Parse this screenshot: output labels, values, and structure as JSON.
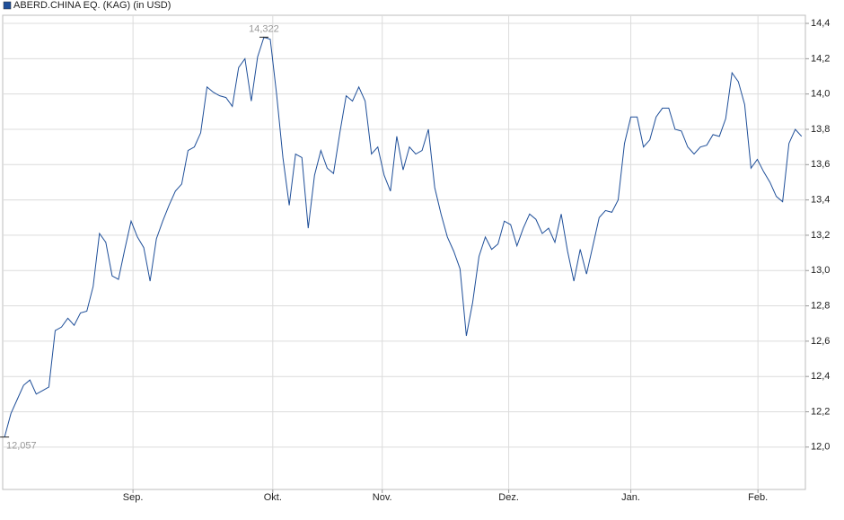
{
  "chart_data": {
    "type": "line",
    "series": [
      {
        "name": "ABERD.CHINA EQ. (KAG) (in USD)",
        "color": "#1f4f99",
        "values": [
          12.057,
          12.19,
          12.27,
          12.35,
          12.38,
          12.3,
          12.32,
          12.34,
          12.66,
          12.68,
          12.73,
          12.69,
          12.76,
          12.77,
          12.91,
          13.21,
          13.16,
          12.97,
          12.95,
          13.12,
          13.28,
          13.19,
          13.13,
          12.94,
          13.18,
          13.28,
          13.37,
          13.45,
          13.49,
          13.68,
          13.7,
          13.78,
          14.04,
          14.01,
          13.99,
          13.98,
          13.93,
          14.15,
          14.2,
          13.96,
          14.21,
          14.322,
          14.31,
          14.0,
          13.64,
          13.37,
          13.66,
          13.64,
          13.24,
          13.54,
          13.68,
          13.58,
          13.55,
          13.78,
          13.99,
          13.96,
          14.04,
          13.96,
          13.66,
          13.7,
          13.54,
          13.45,
          13.76,
          13.57,
          13.7,
          13.66,
          13.68,
          13.8,
          13.47,
          13.32,
          13.19,
          13.11,
          13.01,
          12.63,
          12.82,
          13.08,
          13.19,
          13.12,
          13.15,
          13.28,
          13.26,
          13.14,
          13.24,
          13.32,
          13.29,
          13.21,
          13.24,
          13.16,
          13.32,
          13.11,
          12.94,
          13.12,
          12.98,
          13.14,
          13.3,
          13.34,
          13.33,
          13.4,
          13.72,
          13.87,
          13.87,
          13.7,
          13.74,
          13.87,
          13.92,
          13.92,
          13.8,
          13.79,
          13.7,
          13.66,
          13.7,
          13.71,
          13.77,
          13.76,
          13.86,
          14.12,
          14.07,
          13.94,
          13.58,
          13.63,
          13.56,
          13.5,
          13.42,
          13.39,
          13.72,
          13.8,
          13.76
        ]
      }
    ],
    "x": [
      0,
      1,
      2,
      3,
      4,
      5,
      6,
      7,
      8,
      9,
      10,
      11,
      12,
      13,
      14,
      15,
      16,
      17,
      18,
      19,
      20,
      21,
      22,
      23,
      24,
      25,
      26,
      27,
      28,
      29,
      30,
      31,
      32,
      33,
      34,
      35,
      36,
      37,
      38,
      39,
      40,
      41,
      42,
      43,
      44,
      45,
      46,
      47,
      48,
      49,
      50,
      51,
      52,
      53,
      54,
      55,
      56,
      57,
      58,
      59,
      60,
      61,
      62,
      63,
      64,
      65,
      66,
      67,
      68,
      69,
      70,
      71,
      72,
      73,
      74,
      75,
      76,
      77,
      78,
      79,
      80,
      81,
      82,
      83,
      84,
      85,
      86,
      87,
      88,
      89,
      90,
      91,
      92,
      93,
      94,
      95,
      96,
      97,
      98,
      99,
      100,
      101,
      102,
      103,
      104,
      105,
      106,
      107,
      108,
      109,
      110,
      111,
      112,
      113,
      114,
      115,
      116,
      117,
      118,
      119,
      120,
      121,
      122,
      123,
      124,
      125,
      126
    ],
    "xlim": [
      -0.3,
      126.6
    ],
    "xticks": [
      {
        "value": 20.3,
        "label": "Sep."
      },
      {
        "value": 42.4,
        "label": "Okt."
      },
      {
        "value": 59.7,
        "label": "Nov."
      },
      {
        "value": 79.7,
        "label": "Dez."
      },
      {
        "value": 99.0,
        "label": "Jan."
      },
      {
        "value": 119.1,
        "label": "Feb."
      }
    ],
    "ylim": [
      11.76,
      14.446
    ],
    "yticks": [
      {
        "value": 12.0,
        "label": "12,0"
      },
      {
        "value": 12.2,
        "label": "12,2"
      },
      {
        "value": 12.4,
        "label": "12,4"
      },
      {
        "value": 12.6,
        "label": "12,6"
      },
      {
        "value": 12.8,
        "label": "12,8"
      },
      {
        "value": 13.0,
        "label": "13,0"
      },
      {
        "value": 13.2,
        "label": "13,2"
      },
      {
        "value": 13.4,
        "label": "13,4"
      },
      {
        "value": 13.6,
        "label": "13,6"
      },
      {
        "value": 13.8,
        "label": "13,8"
      },
      {
        "value": 14.0,
        "label": "14,0"
      },
      {
        "value": 14.2,
        "label": "14,2"
      },
      {
        "value": 14.4,
        "label": "14,4"
      }
    ],
    "annotations": [
      {
        "label": "14,322",
        "x": 41,
        "y": 14.322,
        "position": "above"
      },
      {
        "label": "12,057",
        "x": 0,
        "y": 12.057,
        "position": "below"
      }
    ],
    "grid": true,
    "legend": "top-left"
  }
}
